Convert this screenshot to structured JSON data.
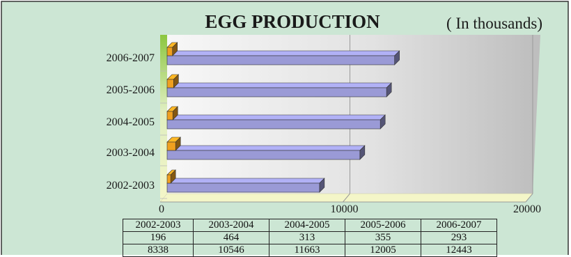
{
  "chart_data": {
    "type": "bar",
    "orientation": "horizontal",
    "title": "EGG PRODUCTION",
    "subtitle": "( In thousands)",
    "categories": [
      "2002-2003",
      "2003-2004",
      "2004-2005",
      "2005-2006",
      "2006-2007"
    ],
    "series": [
      {
        "values": [
          196,
          464,
          313,
          355,
          293
        ],
        "color": "#f0a020"
      },
      {
        "values": [
          8338,
          10546,
          11663,
          12005,
          12443
        ],
        "color": "#9a9ad6"
      }
    ],
    "x_ticks": [
      "0",
      "10000",
      "20000"
    ],
    "xlim": [
      0,
      20000
    ],
    "grid": true,
    "legend": "none"
  },
  "colors": {
    "background": "#cce6d4",
    "plot_wall": "#e4e4e4",
    "floor": "#f4f6c8",
    "left_wall": "#8cc63f"
  },
  "table": {
    "headers": [
      "2002-2003",
      "2003-2004",
      "2004-2005",
      "2005-2006",
      "2006-2007"
    ],
    "rows": [
      [
        "196",
        "464",
        "313",
        "355",
        "293"
      ],
      [
        "8338",
        "10546",
        "11663",
        "12005",
        "12443"
      ]
    ]
  }
}
